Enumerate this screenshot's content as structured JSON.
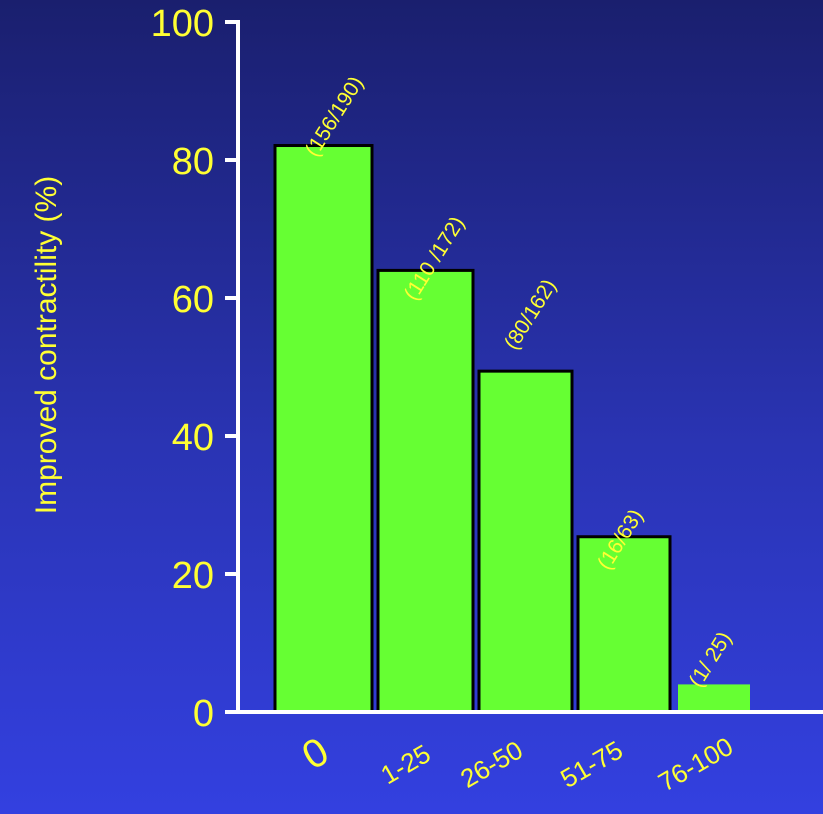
{
  "chart_data": {
    "type": "bar",
    "ylabel": "Improved contractility (%)",
    "xlabel": "",
    "ylim": [
      0,
      100
    ],
    "yticks": [
      0,
      20,
      40,
      60,
      80,
      100
    ],
    "categories": [
      "0",
      "1-25",
      "26-50",
      "51-75",
      "76-100"
    ],
    "values": [
      82.1,
      64.0,
      49.4,
      25.4,
      4.0
    ],
    "data_labels": [
      "(156/190)",
      "(110 /172)",
      "(80/162)",
      "(16/63)",
      "(1/ 25)"
    ],
    "grid": false,
    "legend": "none",
    "colors": {
      "bar_fill": "#66ff33",
      "bar_stroke": "#000000",
      "axis": "#ffffff",
      "text": "#ffff33"
    }
  }
}
